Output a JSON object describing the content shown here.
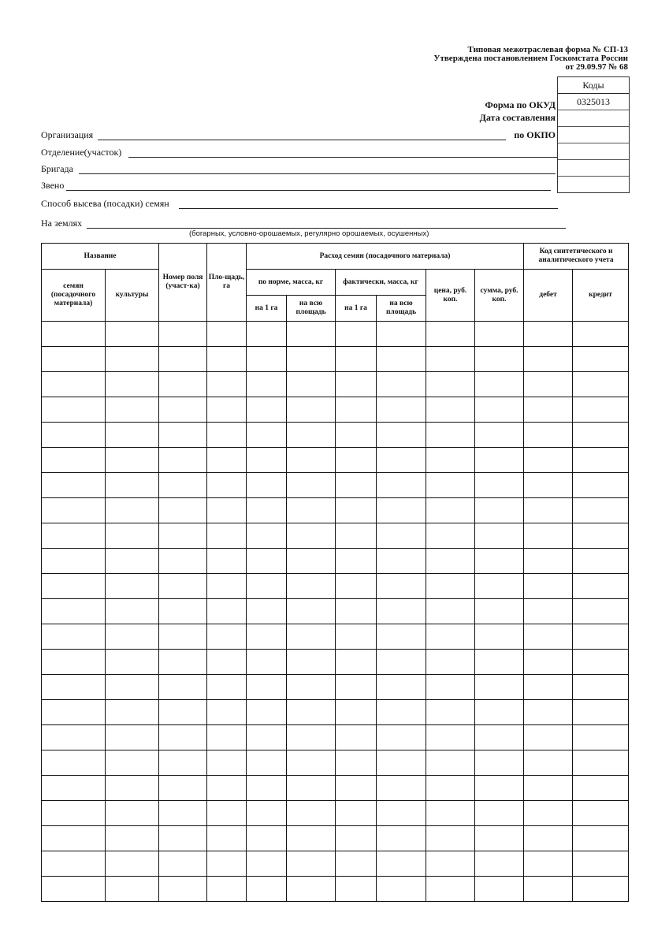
{
  "header": {
    "line1": "Типовая межотраслевая форма № СП-13",
    "line2": "Утверждена постановлением Госкомстата России",
    "line3": "от 29.09.97 № 68"
  },
  "codes": {
    "title": "Коды",
    "okud": "0325013",
    "rows": [
      "",
      "",
      "",
      "",
      ""
    ]
  },
  "labels": {
    "okud": "Форма по ОКУД",
    "date": "Дата составления",
    "okpo": "по ОКПО"
  },
  "fields": {
    "org": "Организация",
    "dept": "Отделение(участок)",
    "brigade": "Бригада",
    "link": "Звено",
    "method": "Способ высева (посадки) семян",
    "lands": "На землях",
    "lands_hint": "(богарных, условно-орошаемых,  регулярно орошаемых, осушенных)"
  },
  "table": {
    "h_name": "Название",
    "h_seeds": "семян (посадочного материала)",
    "h_crop": "культуры",
    "h_field": "Номер поля (участ-ка)",
    "h_area": "Пло-щадь, га",
    "h_usage": "Расход семян (посадочного материала)",
    "h_norm": "по норме, масса, кг",
    "h_fact": "фактически, масса, кг",
    "h_per_ha": "на 1 га",
    "h_total": "на всю площадь",
    "h_price": "цена, руб. коп.",
    "h_sum": "сумма, руб. коп.",
    "h_code": "Код синтетического и аналитического учета",
    "h_debit": "дебет",
    "h_credit": "кредит",
    "row_count": 23
  }
}
